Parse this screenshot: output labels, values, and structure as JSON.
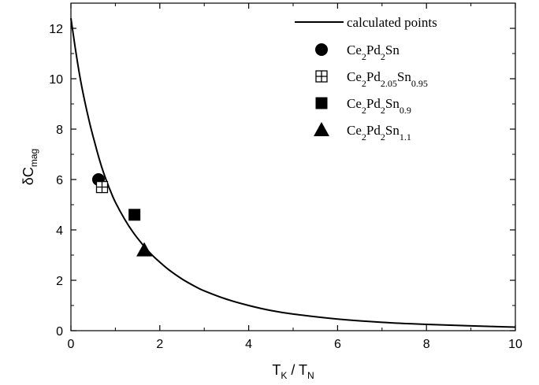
{
  "chart_data": {
    "type": "scatter",
    "xlabel": {
      "main": "T",
      "sub1": "K",
      "mid": " / T",
      "sub2": "N"
    },
    "ylabel": {
      "main": "δC",
      "sub": "mag"
    },
    "xlim": [
      0,
      10
    ],
    "ylim": [
      0,
      13
    ],
    "xticks": [
      "0",
      "2",
      "4",
      "6",
      "8",
      "10"
    ],
    "yticks": [
      "0",
      "2",
      "4",
      "6",
      "8",
      "10",
      "12"
    ],
    "grid": false,
    "legend_position": "top-right",
    "curve": {
      "name": "calculated points",
      "x": [
        0,
        0.1,
        0.2,
        0.3,
        0.4,
        0.5,
        0.6,
        0.7,
        0.8,
        0.9,
        1.0,
        1.2,
        1.4,
        1.6,
        1.8,
        2.0,
        2.2,
        2.5,
        2.8,
        3.0,
        3.5,
        4.0,
        4.5,
        5.0,
        6.0,
        7.0,
        8.0,
        9.0,
        10.0
      ],
      "y": [
        12.4,
        11.2,
        10.1,
        9.2,
        8.4,
        7.7,
        7.05,
        6.45,
        5.95,
        5.5,
        5.1,
        4.45,
        3.9,
        3.45,
        3.05,
        2.72,
        2.42,
        2.05,
        1.75,
        1.58,
        1.25,
        1.0,
        0.8,
        0.66,
        0.46,
        0.33,
        0.25,
        0.19,
        0.14
      ]
    },
    "series": [
      {
        "name": [
          [
            "Ce",
            ""
          ],
          [
            "2",
            "sub"
          ],
          [
            "Pd",
            ""
          ],
          [
            "2",
            "sub"
          ],
          [
            "Sn",
            ""
          ]
        ],
        "marker": "circle",
        "x": [
          0.62
        ],
        "y": [
          6.0
        ]
      },
      {
        "name": [
          [
            "Ce",
            ""
          ],
          [
            "2",
            "sub"
          ],
          [
            "Pd",
            ""
          ],
          [
            "2.05",
            "sub"
          ],
          [
            "Sn",
            ""
          ],
          [
            "0.95",
            "sub"
          ]
        ],
        "marker": "square-plus",
        "x": [
          0.7
        ],
        "y": [
          5.7
        ]
      },
      {
        "name": [
          [
            "Ce",
            ""
          ],
          [
            "2",
            "sub"
          ],
          [
            "Pd",
            ""
          ],
          [
            "2",
            "sub"
          ],
          [
            "Sn",
            ""
          ],
          [
            "0.9",
            "sub"
          ]
        ],
        "marker": "square",
        "x": [
          1.43
        ],
        "y": [
          4.6
        ]
      },
      {
        "name": [
          [
            "Ce",
            ""
          ],
          [
            "2",
            "sub"
          ],
          [
            "Pd",
            ""
          ],
          [
            "2",
            "sub"
          ],
          [
            "Sn",
            ""
          ],
          [
            "1.1",
            "sub"
          ]
        ],
        "marker": "triangle",
        "x": [
          1.65
        ],
        "y": [
          3.2
        ]
      }
    ],
    "colors": {
      "ink": "#000000",
      "background": "#ffffff"
    }
  }
}
